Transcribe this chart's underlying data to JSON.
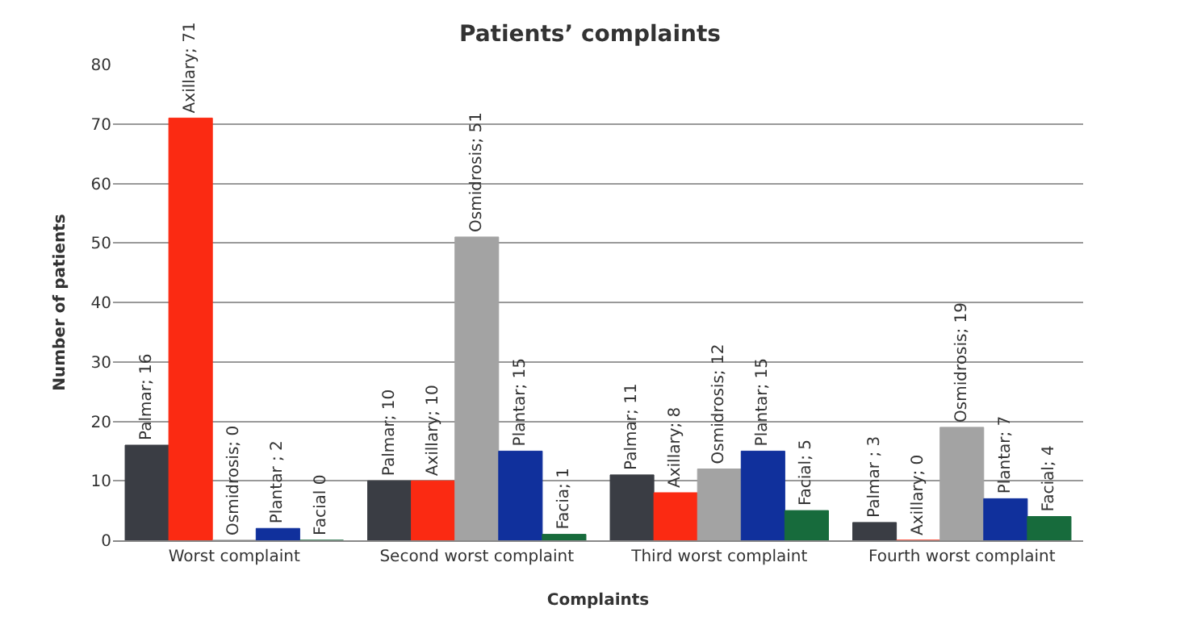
{
  "chart_data": {
    "type": "bar",
    "title": "Patients’ complaints",
    "xlabel": "Complaints",
    "ylabel": "Number of patients",
    "categories": [
      "Worst complaint",
      "Second worst complaint",
      "Third worst complaint",
      "Fourth worst complaint"
    ],
    "series": [
      {
        "color": "#3a3d44",
        "values": [
          16,
          10,
          11,
          3
        ],
        "value_labels": [
          "Palmar; 16",
          "Palmar; 10",
          "Palmar; 11",
          "Palmar ; 3"
        ]
      },
      {
        "color": "#fb2a12",
        "values": [
          71,
          10,
          8,
          0
        ],
        "value_labels": [
          "Axillary; 71",
          "Axillary; 10",
          "Axillary; 8",
          "Axillary; 0"
        ]
      },
      {
        "color": "#a3a3a3",
        "values": [
          0,
          51,
          12,
          19
        ],
        "value_labels": [
          "Osmidrosis; 0",
          "Osmidrosis; 51",
          "Osmidrosis; 12",
          "Osmidrosis; 19"
        ]
      },
      {
        "color": "#10309c",
        "values": [
          2,
          15,
          15,
          7
        ],
        "value_labels": [
          "Plantar ; 2",
          "Plantar; 15",
          "Plantar; 15",
          "Plantar; 7"
        ]
      },
      {
        "color": "#176b3c",
        "values": [
          0,
          1,
          5,
          4
        ],
        "value_labels": [
          "Facial 0",
          "Facia; 1",
          "Facial; 5",
          "Facial; 4"
        ]
      }
    ],
    "ylim": [
      0,
      80
    ],
    "yticks": [
      0,
      10,
      20,
      30,
      40,
      50,
      60,
      70,
      80
    ],
    "grid": "y",
    "legend": false
  }
}
